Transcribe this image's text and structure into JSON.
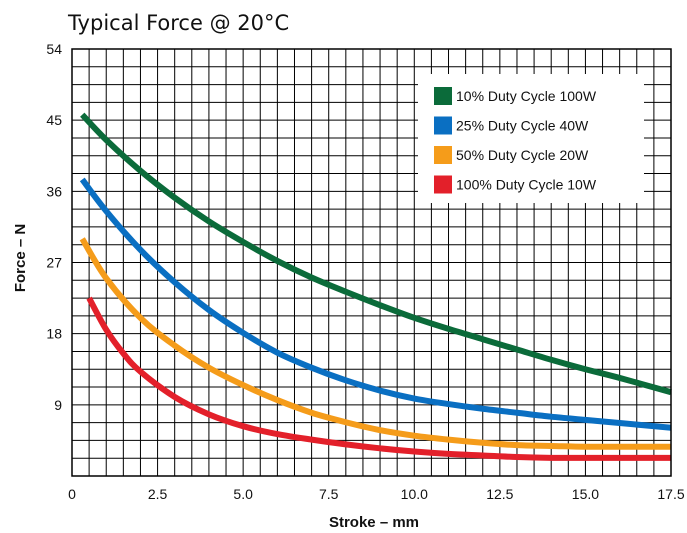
{
  "chart_data": {
    "type": "line",
    "title": "Typical Force @ 20°C",
    "xlabel": "Stroke – mm",
    "ylabel": "Force – N",
    "xlim": [
      0,
      17.5
    ],
    "ylim": [
      0,
      54
    ],
    "x_ticks": [
      "0",
      "2.5",
      "5.0",
      "7.5",
      "10.0",
      "12.5",
      "15.0",
      "17.5"
    ],
    "y_ticks": [
      "9",
      "18",
      "27",
      "36",
      "45",
      "54"
    ],
    "grid": true,
    "grid_minor_x": 0.5,
    "grid_minor_y": 2.25,
    "legend_position": "top-right",
    "series": [
      {
        "name": "10% Duty Cycle 100W",
        "color": "#0b6b3a",
        "x": [
          0.3,
          1.0,
          2.0,
          3.0,
          4.0,
          5.0,
          6.0,
          7.0,
          8.0,
          9.0,
          10.0,
          11.0,
          12.0,
          13.0,
          14.0,
          15.0,
          16.0,
          17.5
        ],
        "y": [
          45.7,
          42.5,
          38.6,
          35.2,
          32.2,
          29.6,
          27.2,
          25.1,
          23.3,
          21.6,
          20.0,
          18.6,
          17.3,
          16.0,
          14.7,
          13.5,
          12.4,
          10.6
        ]
      },
      {
        "name": "25% Duty Cycle 40W",
        "color": "#0a6fc2",
        "x": [
          0.3,
          1.0,
          2.0,
          3.0,
          4.0,
          5.0,
          6.0,
          7.0,
          8.0,
          9.0,
          10.0,
          11.0,
          12.0,
          13.0,
          14.0,
          15.0,
          16.0,
          17.5
        ],
        "y": [
          37.5,
          33.5,
          28.6,
          24.5,
          21.0,
          18.1,
          15.6,
          13.7,
          12.1,
          10.8,
          9.8,
          9.1,
          8.5,
          8.0,
          7.5,
          7.1,
          6.7,
          6.1
        ]
      },
      {
        "name": "50% Duty Cycle 20W",
        "color": "#f59c1a",
        "x": [
          0.3,
          1.0,
          2.0,
          3.0,
          4.0,
          5.0,
          6.0,
          7.0,
          8.0,
          9.0,
          10.0,
          11.0,
          12.0,
          13.0,
          14.0,
          15.0,
          16.0,
          17.5
        ],
        "y": [
          30.0,
          25.0,
          20.0,
          16.5,
          13.7,
          11.5,
          9.6,
          8.0,
          6.8,
          5.8,
          5.1,
          4.6,
          4.2,
          3.9,
          3.8,
          3.7,
          3.7,
          3.7
        ]
      },
      {
        "name": "100% Duty Cycle 10W",
        "color": "#e3202a",
        "x": [
          0.5,
          1.0,
          1.5,
          2.0,
          3.0,
          4.0,
          5.0,
          6.0,
          7.0,
          8.0,
          9.0,
          10.0,
          11.0,
          12.0,
          13.0,
          14.0,
          15.0,
          16.0,
          17.5
        ],
        "y": [
          22.5,
          18.5,
          15.5,
          13.2,
          10.0,
          7.8,
          6.3,
          5.3,
          4.6,
          4.0,
          3.5,
          3.1,
          2.8,
          2.6,
          2.4,
          2.3,
          2.3,
          2.3,
          2.3
        ]
      }
    ]
  }
}
